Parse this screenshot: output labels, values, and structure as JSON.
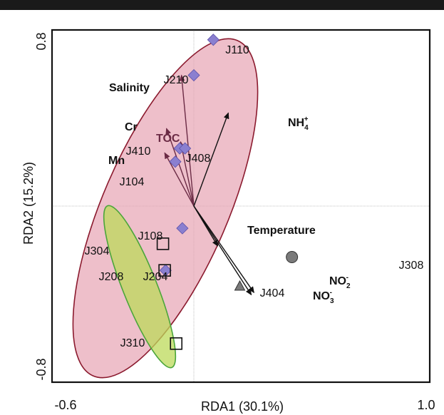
{
  "chart_data": {
    "type": "scatter",
    "subtype": "rda-biplot",
    "xlabel": "RDA1 (30.1%)",
    "ylabel": "RDA2 (15.2%)",
    "xlim": [
      -0.6,
      1.0
    ],
    "ylim": [
      -0.8,
      0.8
    ],
    "x_ticks": [
      "-0.6",
      "1.0"
    ],
    "y_ticks": [
      "0.8",
      "-0.8"
    ],
    "reference_lines": {
      "x": 0,
      "y": 0
    },
    "grid": false,
    "vectors": [
      {
        "label": "Salinity",
        "x": -0.14,
        "y": 0.59,
        "color": "#6b2b45",
        "bold": true
      },
      {
        "label": "Cr",
        "x": -0.31,
        "y": 0.35,
        "color": "#6b2b45",
        "bold": true
      },
      {
        "label": "Mn",
        "x": -0.33,
        "y": 0.24,
        "color": "#6b2b45",
        "bold": true
      },
      {
        "label": "TOC",
        "x": -0.15,
        "y": 0.29,
        "color": "#6b2b45",
        "bold": true
      },
      {
        "label": "NH4+",
        "label_main": "NH",
        "label_sub": "4",
        "label_sup": "+",
        "x": 0.39,
        "y": 0.42,
        "color": "#111111",
        "bold": true
      },
      {
        "label": "Temperature",
        "x": 0.27,
        "y": -0.18,
        "color": "#111111",
        "bold": true
      },
      {
        "label": "NO2-",
        "label_main": "NO",
        "label_sub": "2",
        "label_sup": "-",
        "x": 0.68,
        "y": -0.39,
        "color": "#111111",
        "bold": true
      },
      {
        "label": "NO3-",
        "label_main": "NO",
        "label_sub": "3",
        "label_sup": "-",
        "x": 0.65,
        "y": -0.4,
        "color": "#111111",
        "bold": true
      }
    ],
    "sites": [
      {
        "label": "J110",
        "x": 0.22,
        "y": 0.75,
        "marker": "diamond",
        "color": "#8a7fd0"
      },
      {
        "label": "J210",
        "x": 0.0,
        "y": 0.59,
        "marker": "diamond",
        "color": "#8a7fd0"
      },
      {
        "label": "J410",
        "x": -0.16,
        "y": 0.26,
        "marker": "diamond",
        "color": "#8a7fd0"
      },
      {
        "label": "J408",
        "x": -0.1,
        "y": 0.26,
        "marker": "diamond",
        "color": "#8a7fd0"
      },
      {
        "label": "J104",
        "x": -0.21,
        "y": 0.2,
        "marker": "diamond",
        "color": "#8a7fd0"
      },
      {
        "label": "J108",
        "x": -0.13,
        "y": -0.1,
        "marker": "diamond",
        "color": "#8a7fd0"
      },
      {
        "label": "J204",
        "x": -0.32,
        "y": -0.29,
        "marker": "diamond",
        "color": "#8a7fd0"
      },
      {
        "label": "J304",
        "x": -0.35,
        "y": -0.17,
        "marker": "square",
        "color": "none"
      },
      {
        "label": "J208",
        "x": -0.33,
        "y": -0.29,
        "marker": "square",
        "color": "none"
      },
      {
        "label": "J310",
        "x": -0.2,
        "y": -0.62,
        "marker": "square",
        "color": "none"
      },
      {
        "label": "J404",
        "x": 0.52,
        "y": -0.36,
        "marker": "triangle",
        "color": "#7a7a7a"
      },
      {
        "label": "J308",
        "x": 1.11,
        "y": -0.23,
        "marker": "circle",
        "color": "#7a7a7a"
      }
    ],
    "ellipses": [
      {
        "group": "diamond",
        "fill": "#e7a4b4",
        "stroke": "#8b1a2e"
      },
      {
        "group": "square",
        "fill": "#c4e06a",
        "stroke": "#4aa53a"
      }
    ]
  }
}
